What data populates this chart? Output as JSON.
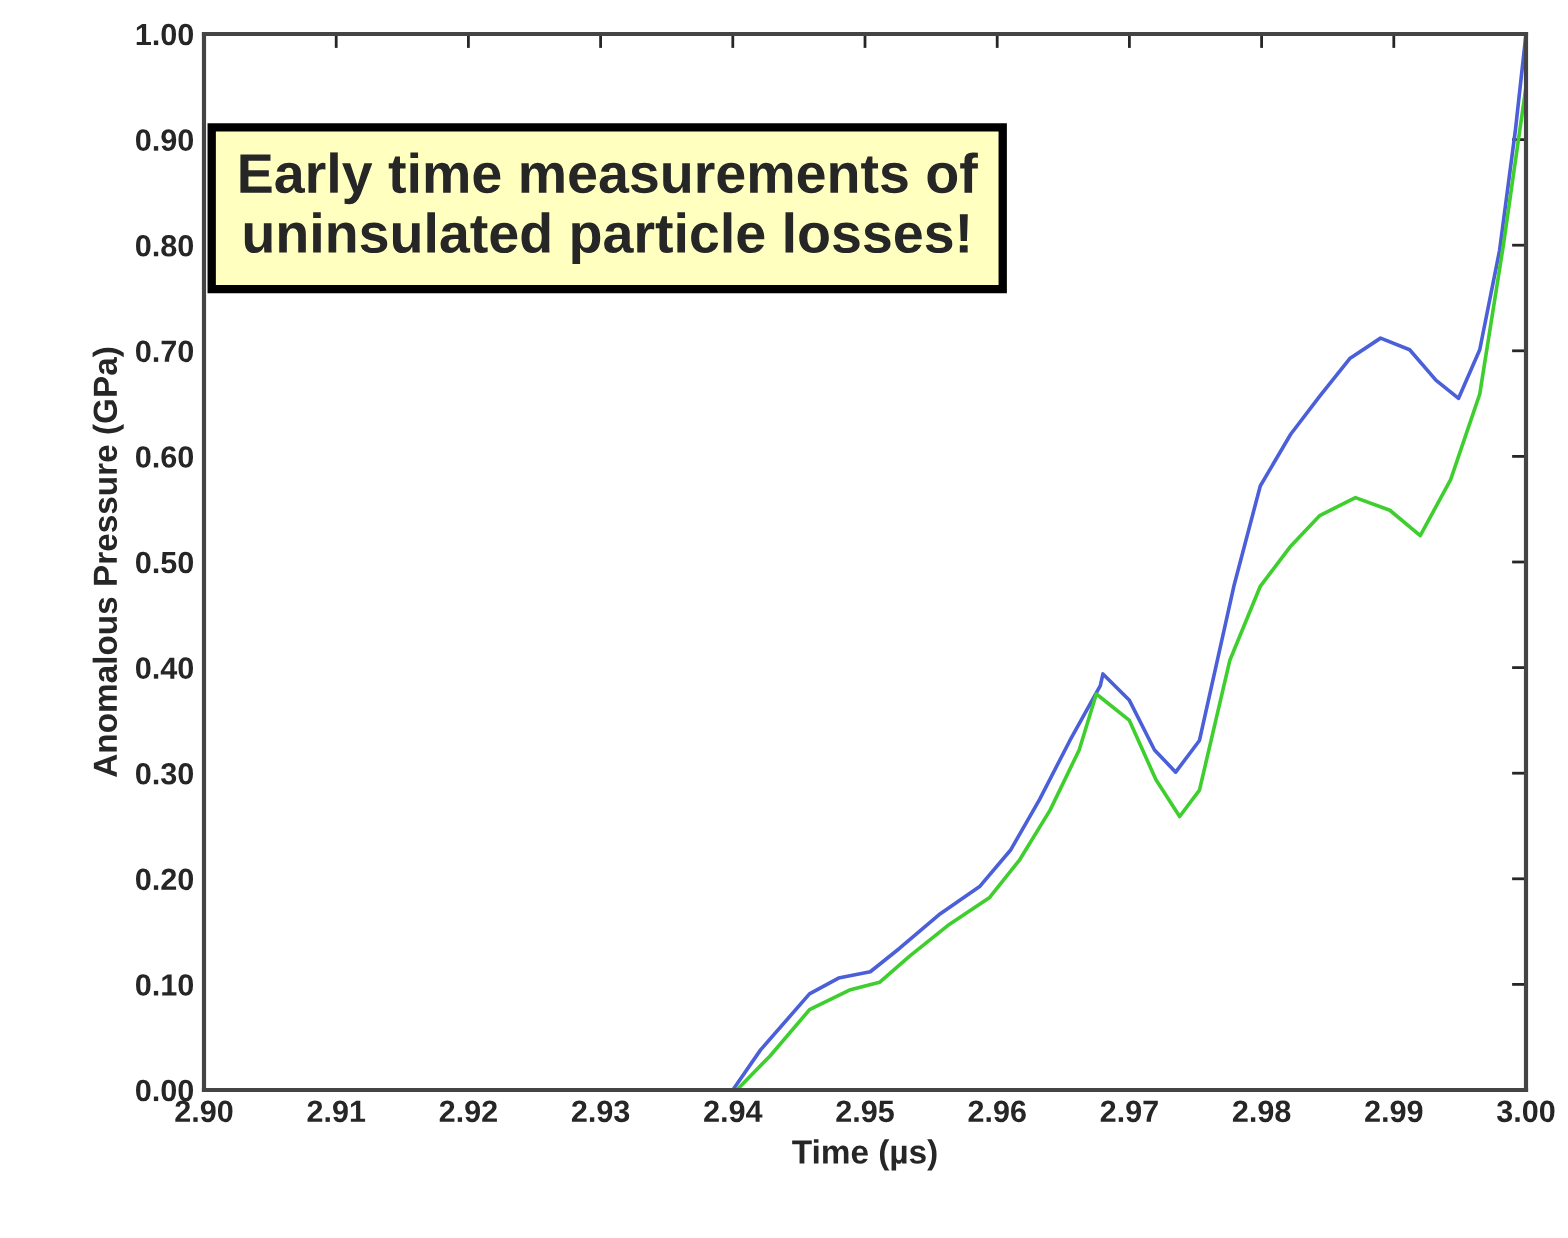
{
  "chart_data": {
    "type": "line",
    "xlabel": "Time (µs)",
    "ylabel": "Anomalous Pressure (GPa)",
    "annotations": [
      "Early time measurements of\nuninsulated particle losses!"
    ],
    "xlim": [
      2.9,
      3.0
    ],
    "xticks": [
      {
        "value": 2.9,
        "label": "2.90"
      },
      {
        "value": 2.91,
        "label": "2.91"
      },
      {
        "value": 2.92,
        "label": "2.92"
      },
      {
        "value": 2.93,
        "label": "2.93"
      },
      {
        "value": 2.94,
        "label": "2.94"
      },
      {
        "value": 2.95,
        "label": "2.95"
      },
      {
        "value": 2.96,
        "label": "2.96"
      },
      {
        "value": 2.97,
        "label": "2.97"
      },
      {
        "value": 2.98,
        "label": "2.98"
      },
      {
        "value": 2.99,
        "label": "2.99"
      },
      {
        "value": 3.0,
        "label": "3.00"
      }
    ],
    "ylim": [
      0,
      1.0
    ],
    "yticks": [
      {
        "value": 0,
        "label": "0.00"
      },
      {
        "value": 0.1,
        "label": "0.10"
      },
      {
        "value": 0.2,
        "label": "0.20"
      },
      {
        "value": 0.3,
        "label": "0.30"
      },
      {
        "value": 0.4,
        "label": "0.40"
      },
      {
        "value": 0.5,
        "label": "0.50"
      },
      {
        "value": 0.6,
        "label": "0.60"
      },
      {
        "value": 0.7,
        "label": "0.70"
      },
      {
        "value": 0.8,
        "label": "0.80"
      },
      {
        "value": 0.9,
        "label": "0.90"
      },
      {
        "value": 1.0,
        "label": "1.00"
      }
    ],
    "grid": false,
    "legend": false,
    "line_style": "solid",
    "marker": "none",
    "series": [
      {
        "color": "#4a5fd8",
        "x": [
          2.94,
          2.9421,
          2.9458,
          2.948,
          2.9504,
          2.9526,
          2.9557,
          2.9587,
          2.961,
          2.9632,
          2.9655,
          2.9678,
          2.968,
          2.97,
          2.9719,
          2.9735,
          2.9753,
          2.9779,
          2.9799,
          2.9822,
          2.9844,
          2.9867,
          2.989,
          2.9912,
          2.9932,
          2.9949,
          2.9965,
          2.998,
          2.9992,
          3.0
        ],
        "values": [
          0.0,
          0.038,
          0.091,
          0.106,
          0.112,
          0.134,
          0.167,
          0.193,
          0.227,
          0.275,
          0.331,
          0.383,
          0.394,
          0.369,
          0.322,
          0.301,
          0.331,
          0.477,
          0.572,
          0.621,
          0.657,
          0.693,
          0.712,
          0.701,
          0.672,
          0.655,
          0.701,
          0.795,
          0.909,
          1.0
        ]
      },
      {
        "color": "#3ecf2e",
        "x": [
          2.9403,
          2.9428,
          2.9458,
          2.9489,
          2.9511,
          2.9534,
          2.9564,
          2.9594,
          2.9617,
          2.964,
          2.9662,
          2.9675,
          2.97,
          2.972,
          2.9738,
          2.9753,
          2.9776,
          2.9799,
          2.9822,
          2.9844,
          2.9871,
          2.9897,
          2.992,
          2.9943,
          2.9965,
          2.9983,
          3.0
        ],
        "values": [
          0.0,
          0.032,
          0.076,
          0.095,
          0.102,
          0.127,
          0.157,
          0.182,
          0.218,
          0.265,
          0.322,
          0.375,
          0.35,
          0.294,
          0.259,
          0.284,
          0.407,
          0.477,
          0.515,
          0.544,
          0.561,
          0.549,
          0.525,
          0.578,
          0.659,
          0.801,
          0.95
        ]
      }
    ]
  }
}
